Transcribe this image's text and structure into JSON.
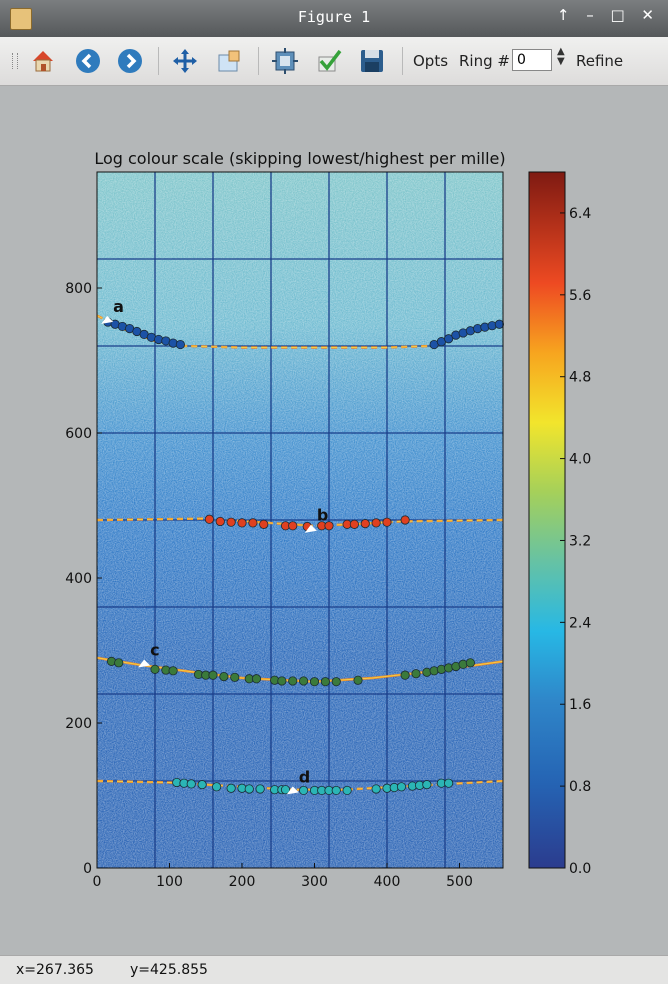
{
  "window": {
    "title": "Figure 1",
    "controls": "↑ – □ ✕"
  },
  "toolbar": {
    "items": [
      {
        "name": "home-icon"
      },
      {
        "name": "back-icon"
      },
      {
        "name": "forward-icon"
      },
      {
        "name": "pan-icon"
      },
      {
        "name": "zoom-icon"
      },
      {
        "name": "subplots-icon"
      },
      {
        "name": "check-icon"
      },
      {
        "name": "save-icon"
      }
    ],
    "opts_label": "Opts",
    "ring_label": "Ring #",
    "ring_value": "0",
    "refine_label": "Refine"
  },
  "status": {
    "x_readout": "x=267.365",
    "y_readout": "y=425.855"
  },
  "chart_data": {
    "type": "heatmap",
    "title": "Log colour scale (skipping lowest/highest per mille)",
    "xlim": [
      0,
      560
    ],
    "ylim": [
      0,
      960
    ],
    "xticks": [
      0,
      100,
      200,
      300,
      400,
      500
    ],
    "yticks": [
      0,
      200,
      400,
      600,
      800
    ],
    "grid": true,
    "colorbar": {
      "min": 0.0,
      "max": 6.8,
      "ticks": [
        "0.0",
        "0.8",
        "1.6",
        "2.4",
        "3.2",
        "4.0",
        "4.8",
        "5.6",
        "6.4"
      ]
    },
    "rings": [
      {
        "label": "a",
        "marker_color": "#1c52a6",
        "curve": [
          [
            0,
            762
          ],
          [
            40,
            742
          ],
          [
            80,
            727
          ],
          [
            120,
            720
          ],
          [
            200,
            718
          ],
          [
            300,
            718
          ],
          [
            400,
            718
          ],
          [
            460,
            720
          ],
          [
            500,
            735
          ],
          [
            560,
            750
          ]
        ],
        "points": [
          [
            15,
            753
          ],
          [
            25,
            750
          ],
          [
            35,
            747
          ],
          [
            45,
            744
          ],
          [
            55,
            740
          ],
          [
            65,
            736
          ],
          [
            75,
            732
          ],
          [
            85,
            729
          ],
          [
            95,
            727
          ],
          [
            105,
            724
          ],
          [
            115,
            722
          ],
          [
            465,
            722
          ],
          [
            475,
            726
          ],
          [
            485,
            730
          ],
          [
            495,
            735
          ],
          [
            505,
            738
          ],
          [
            515,
            741
          ],
          [
            525,
            744
          ],
          [
            535,
            746
          ],
          [
            545,
            748
          ],
          [
            555,
            750
          ]
        ]
      },
      {
        "label": "b",
        "marker_color": "#e04020",
        "curve": [
          [
            0,
            480
          ],
          [
            150,
            482
          ],
          [
            250,
            475
          ],
          [
            300,
            472
          ],
          [
            350,
            474
          ],
          [
            420,
            478
          ],
          [
            560,
            480
          ]
        ],
        "points": [
          [
            155,
            481
          ],
          [
            170,
            478
          ],
          [
            185,
            477
          ],
          [
            200,
            476
          ],
          [
            215,
            476
          ],
          [
            230,
            474
          ],
          [
            260,
            472
          ],
          [
            270,
            472
          ],
          [
            290,
            471
          ],
          [
            310,
            472
          ],
          [
            320,
            472
          ],
          [
            345,
            474
          ],
          [
            355,
            474
          ],
          [
            370,
            475
          ],
          [
            385,
            476
          ],
          [
            400,
            477
          ],
          [
            425,
            480
          ]
        ]
      },
      {
        "label": "c",
        "marker_color": "#3b7a3b",
        "curve": [
          [
            0,
            290
          ],
          [
            60,
            280
          ],
          [
            120,
            272
          ],
          [
            200,
            262
          ],
          [
            300,
            257
          ],
          [
            380,
            262
          ],
          [
            450,
            270
          ],
          [
            560,
            285
          ]
        ],
        "points": [
          [
            20,
            285
          ],
          [
            30,
            283
          ],
          [
            80,
            274
          ],
          [
            95,
            273
          ],
          [
            105,
            272
          ],
          [
            140,
            267
          ],
          [
            150,
            266
          ],
          [
            160,
            266
          ],
          [
            175,
            264
          ],
          [
            190,
            263
          ],
          [
            210,
            261
          ],
          [
            220,
            261
          ],
          [
            245,
            259
          ],
          [
            255,
            258
          ],
          [
            270,
            258
          ],
          [
            285,
            258
          ],
          [
            300,
            257
          ],
          [
            315,
            257
          ],
          [
            330,
            257
          ],
          [
            360,
            259
          ],
          [
            425,
            266
          ],
          [
            440,
            268
          ],
          [
            455,
            270
          ],
          [
            465,
            272
          ],
          [
            475,
            274
          ],
          [
            485,
            276
          ],
          [
            495,
            278
          ],
          [
            505,
            281
          ],
          [
            515,
            283
          ]
        ]
      },
      {
        "label": "d",
        "marker_color": "#2bb5b5",
        "curve": [
          [
            0,
            120
          ],
          [
            100,
            118
          ],
          [
            200,
            112
          ],
          [
            270,
            108
          ],
          [
            340,
            108
          ],
          [
            430,
            113
          ],
          [
            560,
            120
          ]
        ],
        "points": [
          [
            110,
            118
          ],
          [
            120,
            117
          ],
          [
            130,
            116
          ],
          [
            145,
            115
          ],
          [
            165,
            112
          ],
          [
            185,
            110
          ],
          [
            200,
            110
          ],
          [
            210,
            109
          ],
          [
            225,
            109
          ],
          [
            245,
            108
          ],
          [
            255,
            108
          ],
          [
            260,
            108
          ],
          [
            285,
            107
          ],
          [
            300,
            107
          ],
          [
            310,
            107
          ],
          [
            320,
            107
          ],
          [
            330,
            107
          ],
          [
            345,
            107
          ],
          [
            385,
            109
          ],
          [
            400,
            110
          ],
          [
            410,
            111
          ],
          [
            420,
            112
          ],
          [
            435,
            113
          ],
          [
            445,
            114
          ],
          [
            455,
            115
          ],
          [
            475,
            117
          ],
          [
            485,
            117
          ]
        ]
      }
    ]
  }
}
